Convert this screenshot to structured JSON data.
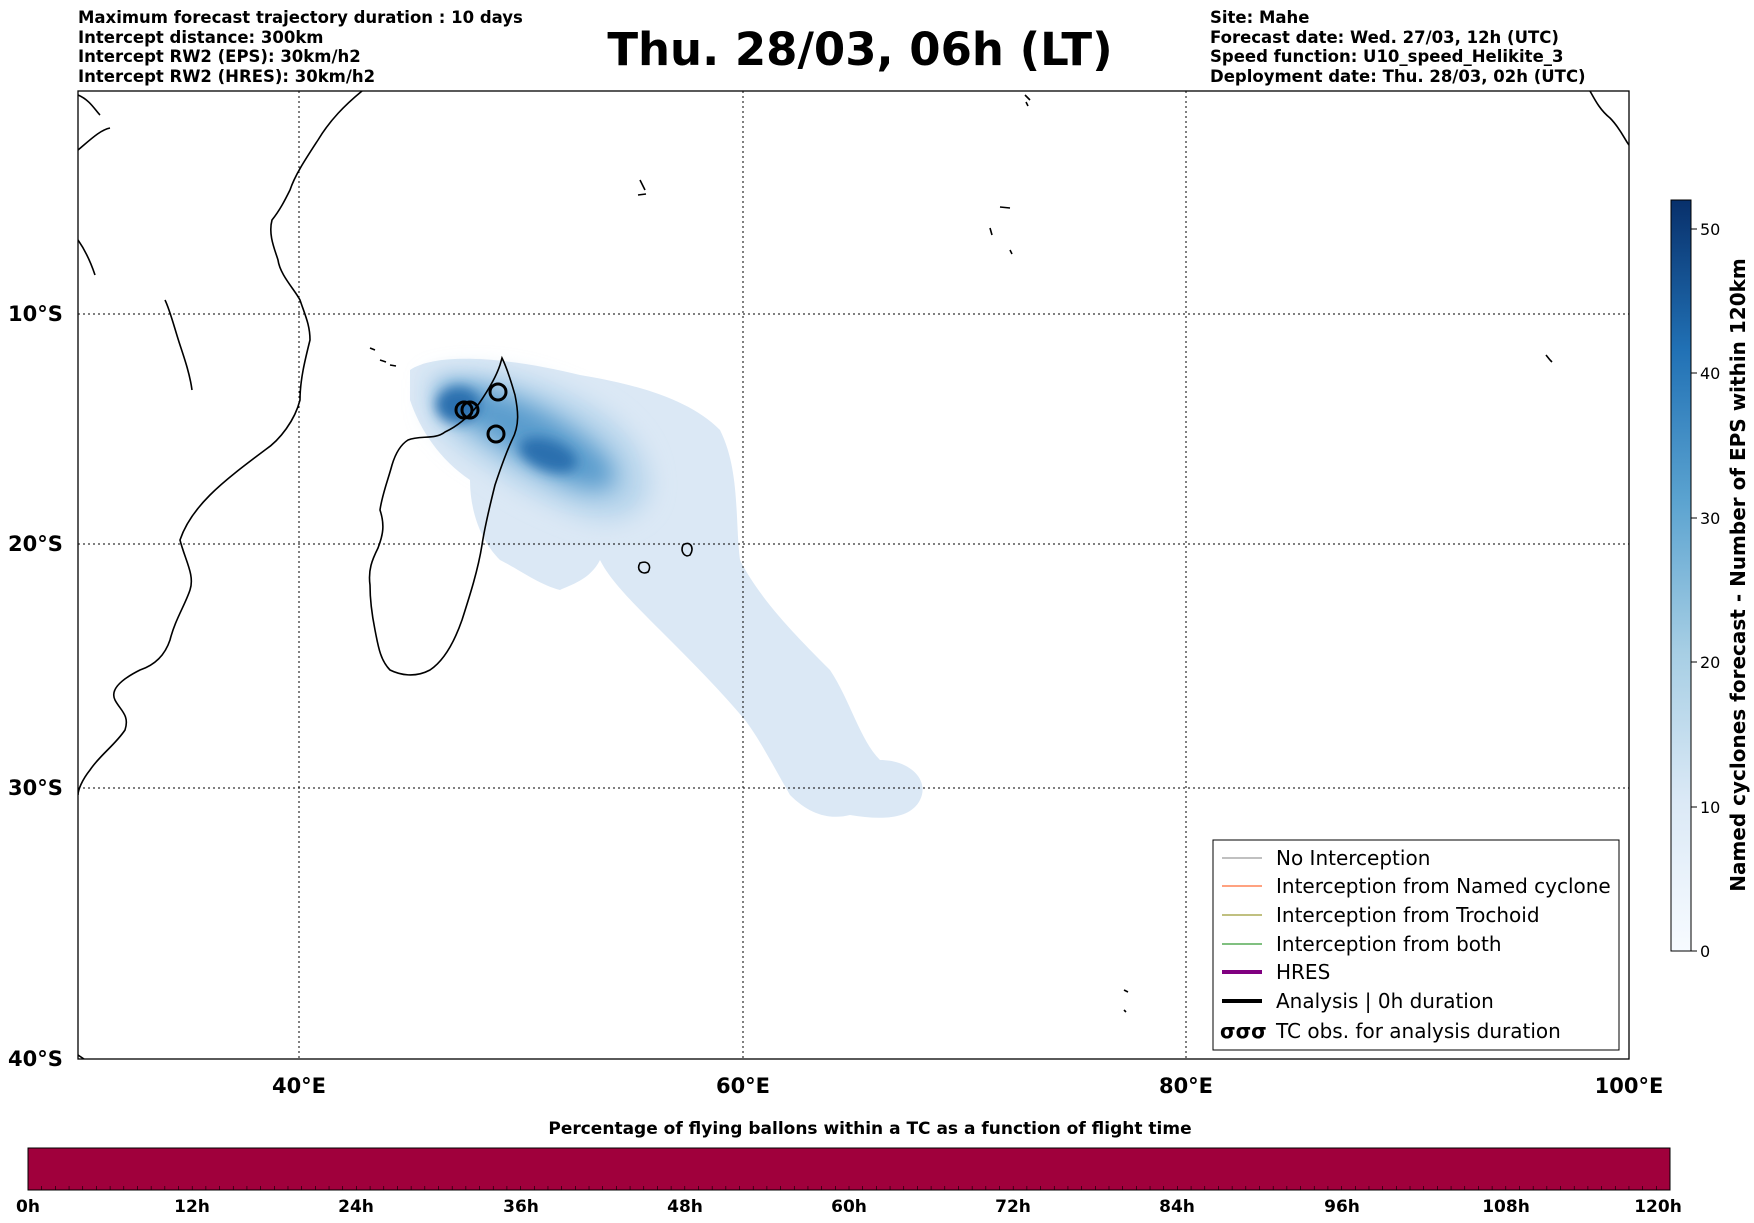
{
  "header": {
    "left": [
      "Maximum forecast trajectory duration : 10 days",
      "Intercept distance: 300km",
      "Intercept RW2 (EPS):  30km/h2",
      "Intercept RW2 (HRES): 30km/h2"
    ],
    "title": "Thu. 28/03, 06h (LT)",
    "right": [
      "Site: Mahe",
      "Forecast date: Wed. 27/03, 12h (UTC)",
      "Speed function: U10_speed_Helikite_3",
      "Deployment date: Thu. 28/03, 02h (UTC)"
    ]
  },
  "map": {
    "lat_ticks": [
      "10°S",
      "20°S",
      "30°S",
      "40°S"
    ],
    "lon_ticks": [
      "40°E",
      "60°E",
      "80°E",
      "100°E"
    ],
    "lon_range": [
      30,
      100
    ],
    "lat_range": [
      -40,
      -0.5
    ],
    "grid": "dotted"
  },
  "colorbar": {
    "label": "Named cyclones forecast - Number of EPS within 120km",
    "ticks": [
      "0",
      "10",
      "20",
      "30",
      "40",
      "50"
    ],
    "range": [
      0,
      52
    ],
    "colors": [
      "#f7fbff",
      "#dbe9f6",
      "#a6cee4",
      "#5ba3d0",
      "#2171b5",
      "#08306b"
    ]
  },
  "legend": {
    "items": [
      {
        "label": "No Interception",
        "color": "#808080",
        "style": "thin"
      },
      {
        "label": "Interception from Named cyclone",
        "color": "#ff4500",
        "style": "thin"
      },
      {
        "label": "Interception from Trochoid",
        "color": "#808000",
        "style": "thin"
      },
      {
        "label": "Interception from both",
        "color": "#008000",
        "style": "thin"
      },
      {
        "label": "HRES",
        "color": "#800080",
        "style": "thick"
      },
      {
        "label": "Analysis | 0h duration",
        "color": "#000000",
        "style": "thick"
      },
      {
        "label": "TC obs. for analysis duration",
        "color": "#000000",
        "style": "symbol",
        "symbol": "σσσ"
      }
    ]
  },
  "bottom": {
    "title": "Percentage of flying ballons within a TC as a function of flight time",
    "ticks": [
      "0h",
      "12h",
      "24h",
      "36h",
      "48h",
      "60h",
      "72h",
      "84h",
      "96h",
      "108h",
      "120h"
    ],
    "bar_color": "#a0003c"
  }
}
